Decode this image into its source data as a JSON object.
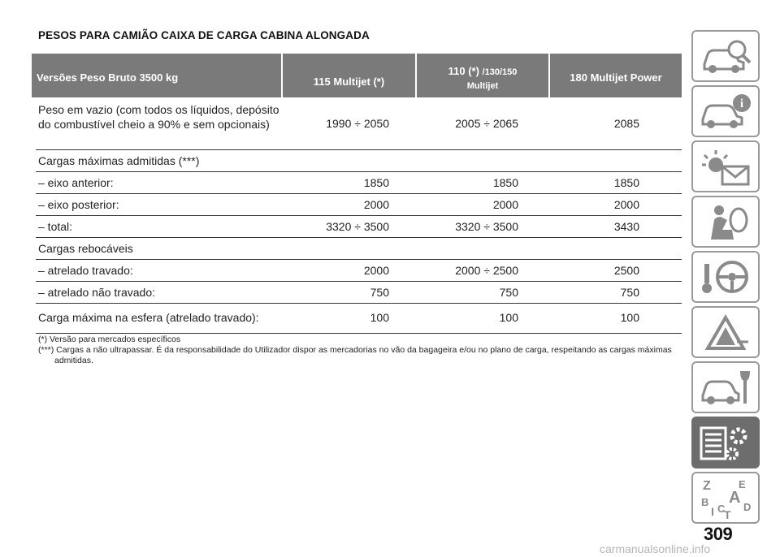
{
  "title": "PESOS PARA CAMIÃO CAIXA DE CARGA CABINA ALONGADA",
  "table": {
    "headers": {
      "col0": "Versões Peso Bruto 3500 kg",
      "col1": "115 Multijet (*)",
      "col2_main": "110 (*)",
      "col2_small": "/130/150",
      "col2_line2": "Multijet",
      "col3": "180 Multijet Power"
    },
    "rows": [
      {
        "label": "Peso em vazio (com todos os líquidos, depósito do combustível cheio a 90% e sem opcionais)",
        "v1": "1990 ÷ 2050",
        "v2": "2005 ÷ 2065",
        "v3": "2085"
      },
      {
        "label": "Cargas máximas admitidas (***)",
        "v1": "",
        "v2": "",
        "v3": ""
      },
      {
        "label": "– eixo anterior:",
        "v1": "1850",
        "v2": "1850",
        "v3": "1850"
      },
      {
        "label": "– eixo posterior:",
        "v1": "2000",
        "v2": "2000",
        "v3": "2000"
      },
      {
        "label": "– total:",
        "v1": "3320 ÷ 3500",
        "v2": "3320 ÷ 3500",
        "v3": "3430"
      },
      {
        "label": "Cargas rebocáveis",
        "v1": "",
        "v2": "",
        "v3": ""
      },
      {
        "label": "– atrelado travado:",
        "v1": "2000",
        "v2": "2000 ÷ 2500",
        "v3": "2500"
      },
      {
        "label": "– atrelado não travado:",
        "v1": "750",
        "v2": "750",
        "v3": "750"
      },
      {
        "label": "Carga máxima na esfera (atrelado travado):",
        "v1": "100",
        "v2": "100",
        "v3": "100"
      }
    ]
  },
  "footnotes": {
    "note1": "(*) Versão para mercados específicos",
    "note2": "(***) Cargas a não ultrapassar. É da responsabilidade do Utilizador dispor as mercadorias no vão da bagageira e/ou no plano de carga, respeitando as cargas máximas",
    "note2_cont": "admitidas."
  },
  "side_tabs": {
    "icons": [
      "car-search-icon",
      "car-info-icon",
      "warning-lights-icon",
      "airbag-seat-icon",
      "steering-key-icon",
      "breakdown-triangle-icon",
      "car-wrench-icon",
      "specs-gear-icon",
      "alphabet-index-icon"
    ],
    "active_index": 7,
    "index_letters": [
      "Z",
      "E",
      "A",
      "B",
      "C",
      "D",
      "T",
      "I"
    ]
  },
  "page_number": "309",
  "watermark": "carmanualsonline.info"
}
